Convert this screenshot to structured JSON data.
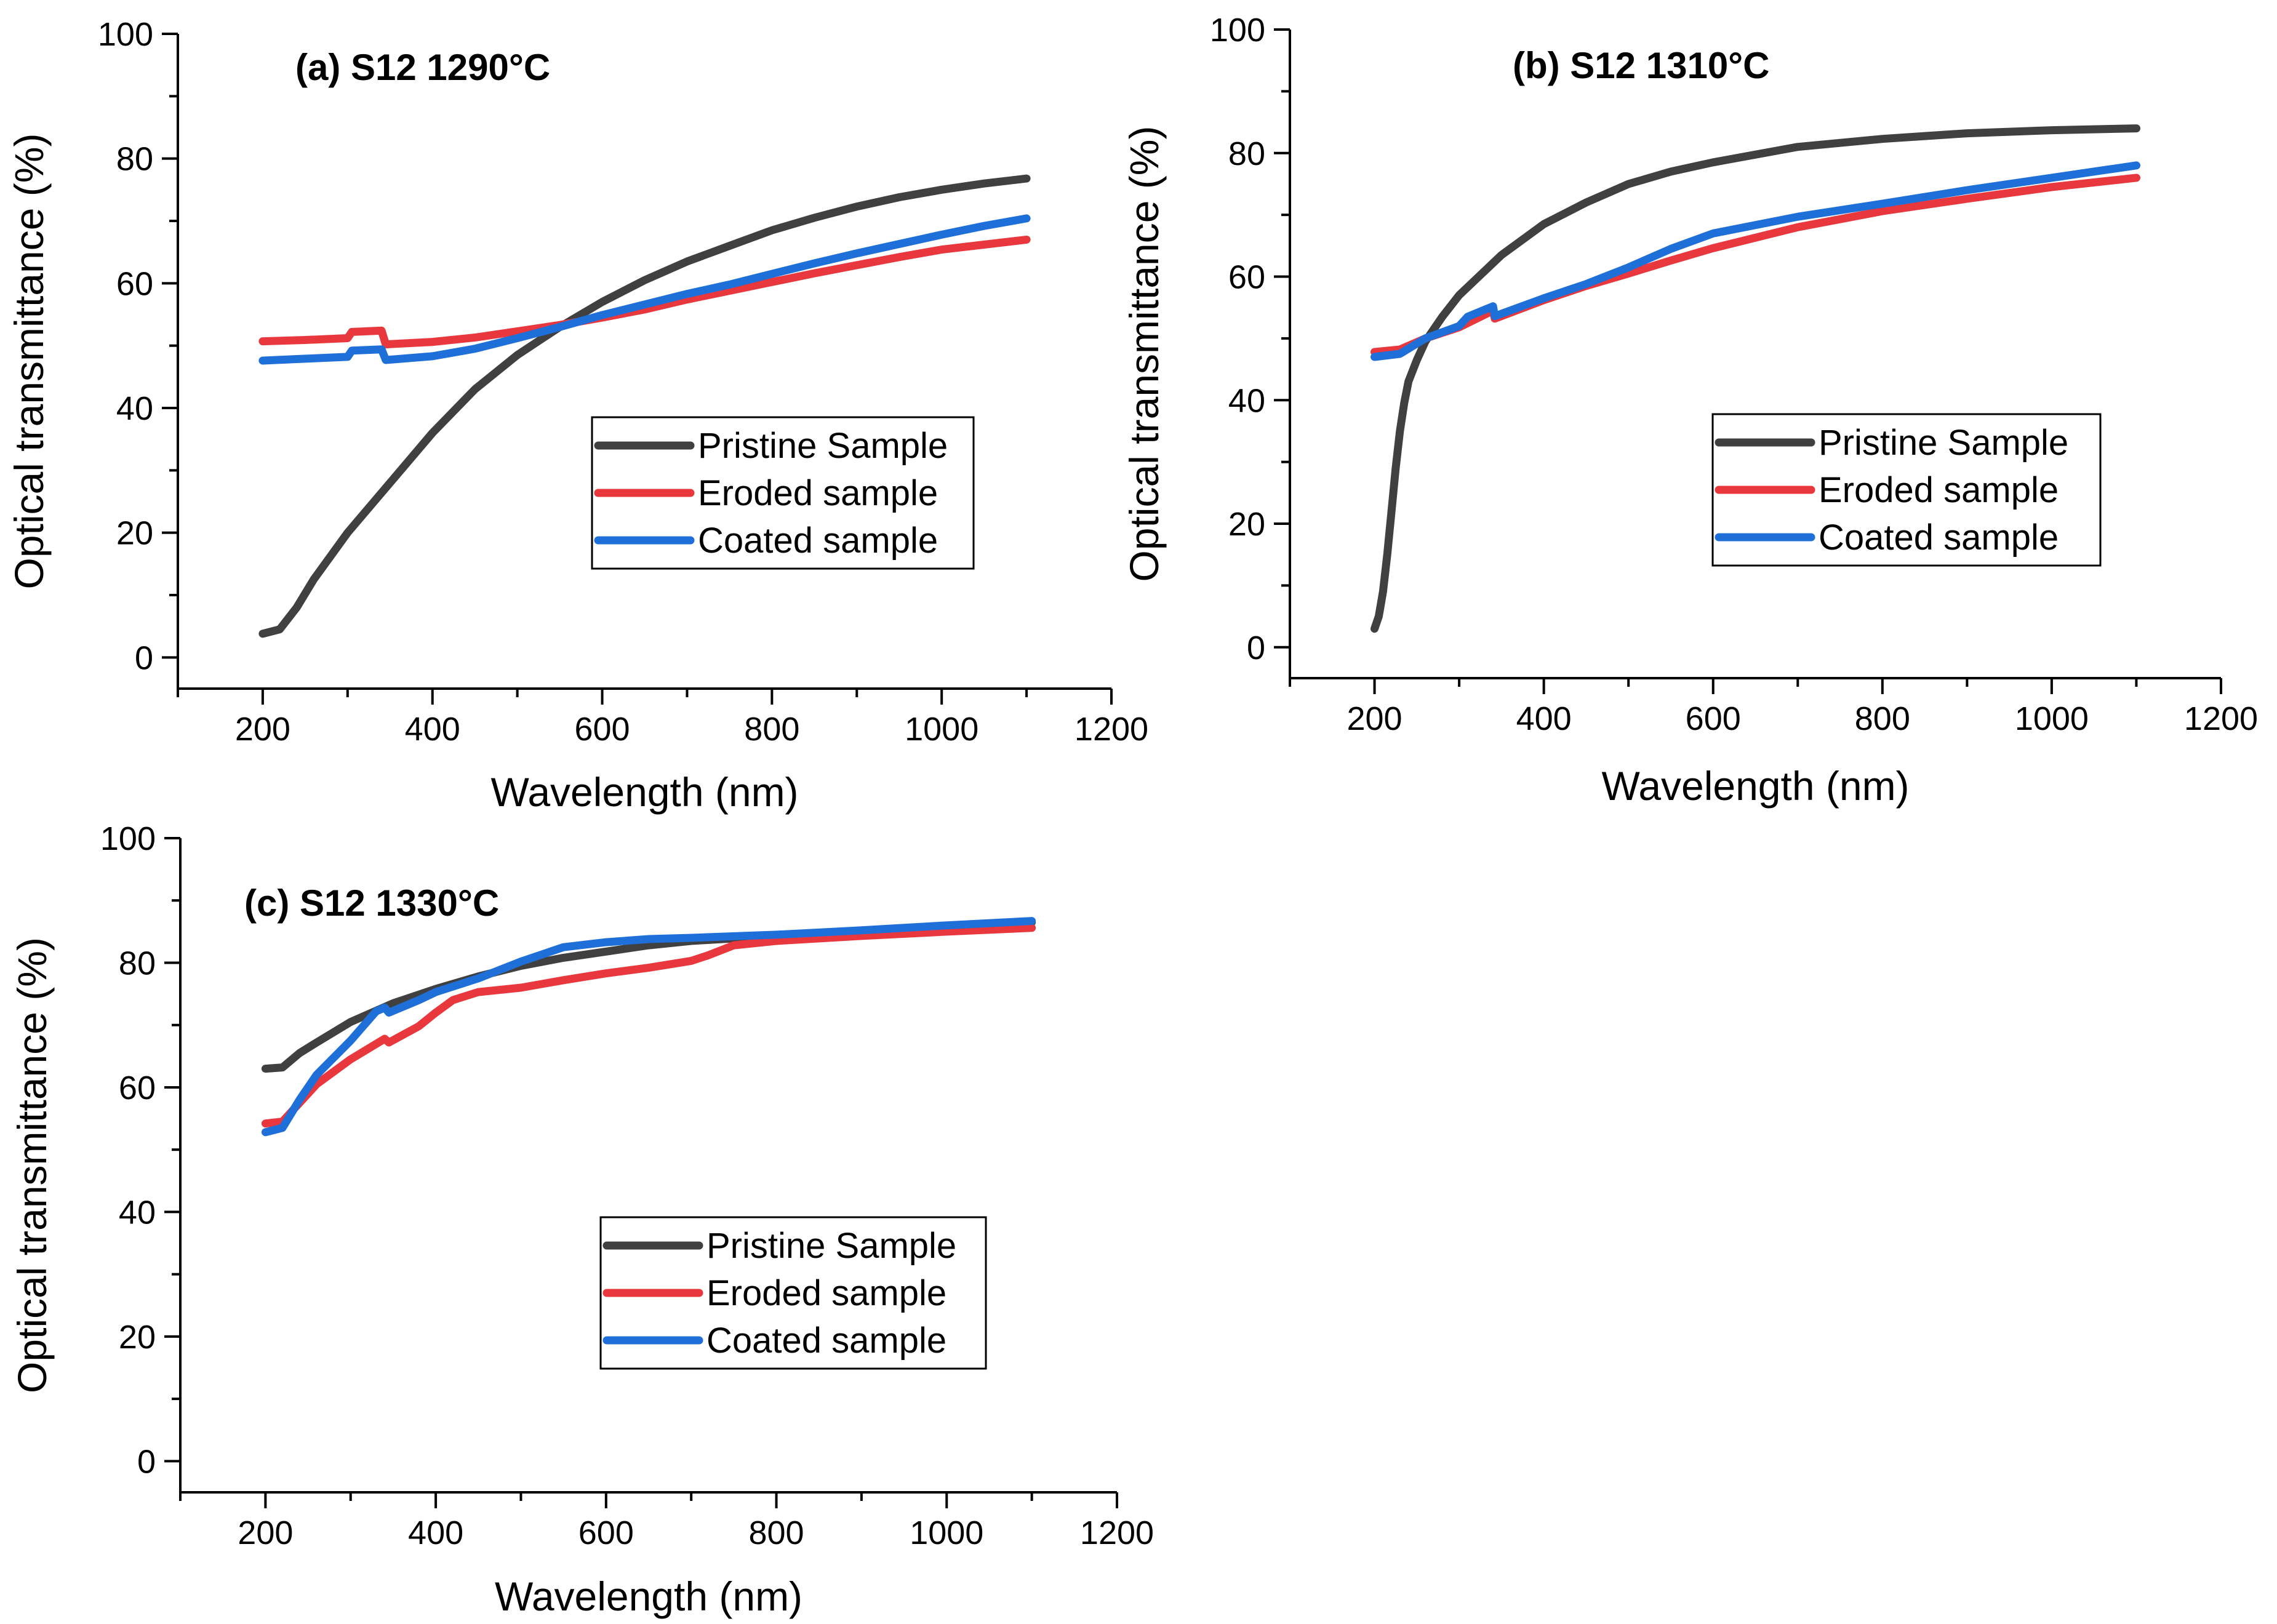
{
  "chart_data": [
    {
      "type": "line",
      "title": "(a) S12 1290°C",
      "xlabel": "Wavelength (nm)",
      "ylabel": "Optical transmittance (%)",
      "xlim": [
        100,
        1200
      ],
      "ylim": [
        -5,
        100
      ],
      "xticks": [
        200,
        400,
        600,
        800,
        1000,
        1200
      ],
      "yticks": [
        0,
        20,
        40,
        60,
        80,
        100
      ],
      "xtick_labels": [
        "200",
        "400",
        "600",
        "800",
        "1000",
        "1200"
      ],
      "ytick_labels": [
        "0",
        "20",
        "40",
        "60",
        "80",
        "100"
      ],
      "legend_position": "center-right",
      "series": [
        {
          "name": "Pristine Sample",
          "color": "#404040",
          "x": [
            200,
            220,
            240,
            260,
            300,
            350,
            400,
            450,
            500,
            550,
            600,
            650,
            700,
            750,
            800,
            850,
            900,
            950,
            1000,
            1050,
            1100
          ],
          "y": [
            3.8,
            4.5,
            8,
            12.5,
            20,
            28,
            36,
            43,
            48.5,
            53,
            57,
            60.5,
            63.5,
            66,
            68.5,
            70.5,
            72.3,
            73.8,
            75,
            76,
            76.8
          ]
        },
        {
          "name": "Eroded sample",
          "color": "#e8383d",
          "x": [
            200,
            250,
            300,
            305,
            340,
            345,
            400,
            450,
            500,
            550,
            600,
            650,
            700,
            750,
            800,
            850,
            900,
            950,
            1000,
            1050,
            1100
          ],
          "y": [
            50.7,
            50.9,
            51.2,
            52.2,
            52.4,
            50.2,
            50.6,
            51.3,
            52.3,
            53.3,
            54.5,
            55.8,
            57.4,
            58.8,
            60.2,
            61.6,
            62.9,
            64.2,
            65.4,
            66.2,
            67
          ]
        },
        {
          "name": "Coated sample",
          "color": "#1f6fd9",
          "x": [
            200,
            250,
            300,
            305,
            340,
            345,
            400,
            450,
            500,
            550,
            600,
            650,
            700,
            750,
            800,
            850,
            900,
            950,
            1000,
            1050,
            1100
          ],
          "y": [
            47.6,
            47.9,
            48.2,
            49.2,
            49.4,
            47.7,
            48.3,
            49.5,
            51.2,
            53,
            54.9,
            56.6,
            58.3,
            59.8,
            61.5,
            63.2,
            64.8,
            66.3,
            67.8,
            69.2,
            70.4
          ]
        }
      ]
    },
    {
      "type": "line",
      "title": "(b) S12 1310°C",
      "xlabel": "Wavelength (nm)",
      "ylabel": "Optical transmittance (%)",
      "xlim": [
        100,
        1200
      ],
      "ylim": [
        -5,
        100
      ],
      "xticks": [
        200,
        400,
        600,
        800,
        1000,
        1200
      ],
      "yticks": [
        0,
        20,
        40,
        60,
        80,
        100
      ],
      "xtick_labels": [
        "200",
        "400",
        "600",
        "800",
        "1000",
        "1200"
      ],
      "ytick_labels": [
        "0",
        "20",
        "40",
        "60",
        "80",
        "100"
      ],
      "legend_position": "center-right",
      "series": [
        {
          "name": "Pristine Sample",
          "color": "#404040",
          "x": [
            200,
            205,
            210,
            215,
            220,
            225,
            230,
            235,
            240,
            250,
            260,
            280,
            300,
            350,
            400,
            450,
            500,
            550,
            600,
            700,
            800,
            900,
            1000,
            1100
          ],
          "y": [
            3,
            5,
            9,
            15,
            22,
            29,
            35,
            39.5,
            43,
            46.5,
            49.5,
            53.5,
            57,
            63.5,
            68.5,
            72,
            75,
            77,
            78.5,
            81,
            82.3,
            83.2,
            83.7,
            84
          ]
        },
        {
          "name": "Eroded sample",
          "color": "#e8383d",
          "x": [
            200,
            230,
            260,
            300,
            340,
            342,
            400,
            450,
            500,
            550,
            600,
            700,
            800,
            900,
            1000,
            1100
          ],
          "y": [
            47.8,
            48.2,
            50,
            51.8,
            54.5,
            53.2,
            56.2,
            58.5,
            60.5,
            62.6,
            64.6,
            68,
            70.6,
            72.6,
            74.5,
            76
          ]
        },
        {
          "name": "Coated sample",
          "color": "#1f6fd9",
          "x": [
            200,
            230,
            260,
            300,
            310,
            340,
            342,
            400,
            450,
            500,
            550,
            600,
            700,
            800,
            900,
            1000,
            1100
          ],
          "y": [
            47,
            47.5,
            50,
            52,
            53.5,
            55.2,
            53.6,
            56.5,
            58.8,
            61.5,
            64.5,
            67,
            69.7,
            71.8,
            74,
            76,
            78
          ]
        }
      ]
    },
    {
      "type": "line",
      "title": "(c) S12 1330°C",
      "xlabel": "Wavelength (nm)",
      "ylabel": "Optical transmittance (%)",
      "xlim": [
        100,
        1200
      ],
      "ylim": [
        -5,
        100
      ],
      "xticks": [
        200,
        400,
        600,
        800,
        1000,
        1200
      ],
      "yticks": [
        0,
        20,
        40,
        60,
        80,
        100
      ],
      "xtick_labels": [
        "200",
        "400",
        "600",
        "800",
        "1000",
        "1200"
      ],
      "ytick_labels": [
        "0",
        "20",
        "40",
        "60",
        "80",
        "100"
      ],
      "legend_position": "center-right",
      "series": [
        {
          "name": "Pristine Sample",
          "color": "#404040",
          "x": [
            200,
            220,
            240,
            260,
            300,
            350,
            400,
            450,
            500,
            550,
            600,
            650,
            700,
            800,
            900,
            1000,
            1100
          ],
          "y": [
            63,
            63.2,
            65.5,
            67.2,
            70.5,
            73.5,
            75.8,
            77.8,
            79.5,
            80.8,
            81.8,
            82.8,
            83.5,
            84.3,
            85,
            85.8,
            86.5
          ]
        },
        {
          "name": "Eroded sample",
          "color": "#e8383d",
          "x": [
            200,
            220,
            240,
            260,
            300,
            340,
            345,
            380,
            400,
            420,
            450,
            500,
            550,
            600,
            650,
            700,
            720,
            750,
            800,
            900,
            1000,
            1100
          ],
          "y": [
            54.2,
            54.5,
            57.5,
            60.5,
            64.5,
            67.8,
            67.2,
            69.8,
            72,
            74,
            75.3,
            76,
            77.2,
            78.3,
            79.2,
            80.3,
            81.2,
            82.8,
            83.5,
            84.3,
            85,
            85.6
          ]
        },
        {
          "name": "Coated sample",
          "color": "#1f6fd9",
          "x": [
            200,
            220,
            240,
            260,
            300,
            330,
            340,
            345,
            380,
            400,
            450,
            500,
            550,
            600,
            650,
            700,
            800,
            900,
            1000,
            1100
          ],
          "y": [
            52.8,
            53.5,
            58,
            62,
            67.5,
            72.2,
            72.8,
            72,
            74,
            75.3,
            77.5,
            80.2,
            82.5,
            83.3,
            83.8,
            84,
            84.5,
            85.2,
            86,
            86.7
          ]
        }
      ]
    }
  ]
}
